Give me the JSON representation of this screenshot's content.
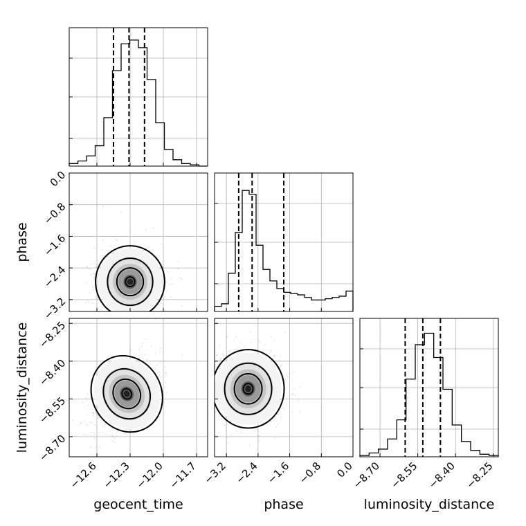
{
  "chart_data": {
    "type": "corner",
    "grid": true,
    "parameters": [
      {
        "name": "geocent_time",
        "label": "geocent_time",
        "range": [
          -12.85,
          -11.6
        ],
        "ticks": [
          -12.6,
          -12.3,
          -12.0,
          -11.7
        ],
        "tick_labels": [
          "−12.6",
          "−12.3",
          "−12.0",
          "−11.7"
        ],
        "quantiles": [
          -12.45,
          -12.31,
          -12.17
        ],
        "hist_counts": [
          0.02,
          0.04,
          0.08,
          0.16,
          0.38,
          0.75,
          0.96,
          0.99,
          0.93,
          0.68,
          0.34,
          0.13,
          0.05,
          0.02,
          0.01,
          0.0
        ]
      },
      {
        "name": "phase",
        "label": "phase",
        "range": [
          -3.5,
          0.0
        ],
        "ticks": [
          -3.2,
          -2.4,
          -1.6,
          -0.8,
          0.0
        ],
        "tick_labels": [
          "−3.2",
          "−2.4",
          "−1.6",
          "−0.8",
          "0.0"
        ],
        "quantiles": [
          -2.89,
          -2.55,
          -1.75
        ],
        "hist_counts": [
          0.04,
          0.06,
          0.3,
          0.62,
          0.95,
          0.92,
          0.52,
          0.33,
          0.24,
          0.18,
          0.15,
          0.14,
          0.13,
          0.11,
          0.09,
          0.09,
          0.1,
          0.11,
          0.12,
          0.16
        ]
      },
      {
        "name": "luminosity_distance",
        "label": "luminosity_distance",
        "range": [
          -8.78,
          -8.23
        ],
        "ticks": [
          -8.7,
          -8.55,
          -8.4,
          -8.25
        ],
        "tick_labels": [
          "−8.70",
          "−8.55",
          "−8.40",
          "−8.25"
        ],
        "quantiles": [
          -8.6,
          -8.53,
          -8.46
        ],
        "hist_counts": [
          0.01,
          0.03,
          0.06,
          0.14,
          0.29,
          0.61,
          0.88,
          0.97,
          0.78,
          0.53,
          0.25,
          0.12,
          0.05,
          0.02,
          0.01
        ]
      }
    ],
    "pairs": [
      {
        "x": "geocent_time",
        "y": "phase",
        "peak": [
          -12.3,
          -2.75
        ],
        "spread": [
          0.12,
          0.35
        ]
      },
      {
        "x": "geocent_time",
        "y": "luminosity_distance",
        "peak": [
          -12.33,
          -8.53
        ],
        "spread": [
          0.12,
          0.06
        ],
        "correlation": 0.5
      },
      {
        "x": "phase",
        "y": "luminosity_distance",
        "peak": [
          -2.65,
          -8.51
        ],
        "spread": [
          0.35,
          0.06
        ]
      }
    ]
  }
}
